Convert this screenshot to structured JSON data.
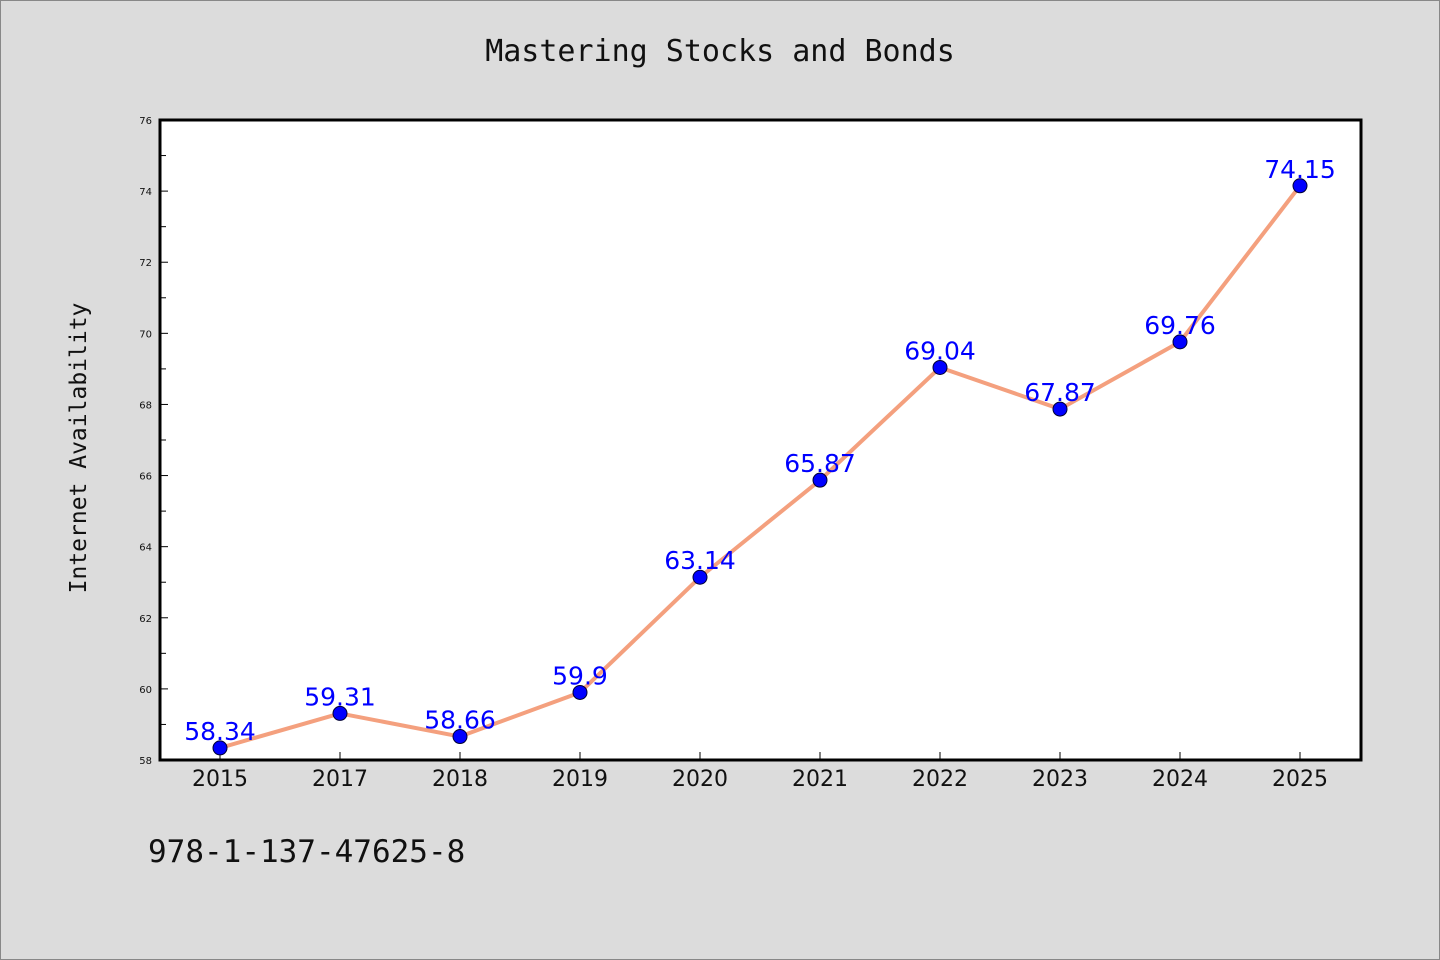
{
  "chart_data": {
    "type": "line",
    "title": "Mastering Stocks and Bonds",
    "xlabel": "",
    "ylabel": "Internet Availability",
    "categories": [
      "2015",
      "2017",
      "2018",
      "2019",
      "2020",
      "2021",
      "2022",
      "2023",
      "2024",
      "2025"
    ],
    "series": [
      {
        "values": [
          58.34,
          59.31,
          58.66,
          59.9,
          63.14,
          65.87,
          69.04,
          67.87,
          69.76,
          74.15
        ],
        "labels": [
          "58.34",
          "59.31",
          "58.66",
          "59.9",
          "63.14",
          "65.87",
          "69.04",
          "67.87",
          "69.76",
          "74.15"
        ]
      }
    ],
    "ylim": [
      58,
      76
    ],
    "yticks": [
      "58",
      "60",
      "62",
      "64",
      "66",
      "68",
      "70",
      "72",
      "74",
      "76"
    ],
    "grid": false,
    "legend": "none",
    "colors": {
      "line": "#f4a07e",
      "marker": "#0000ff",
      "data_label": "#0000ff",
      "background": "#dcdcdc",
      "plot_background": "#ffffff"
    }
  },
  "footer": {
    "code": "978-1-137-47625-8"
  }
}
